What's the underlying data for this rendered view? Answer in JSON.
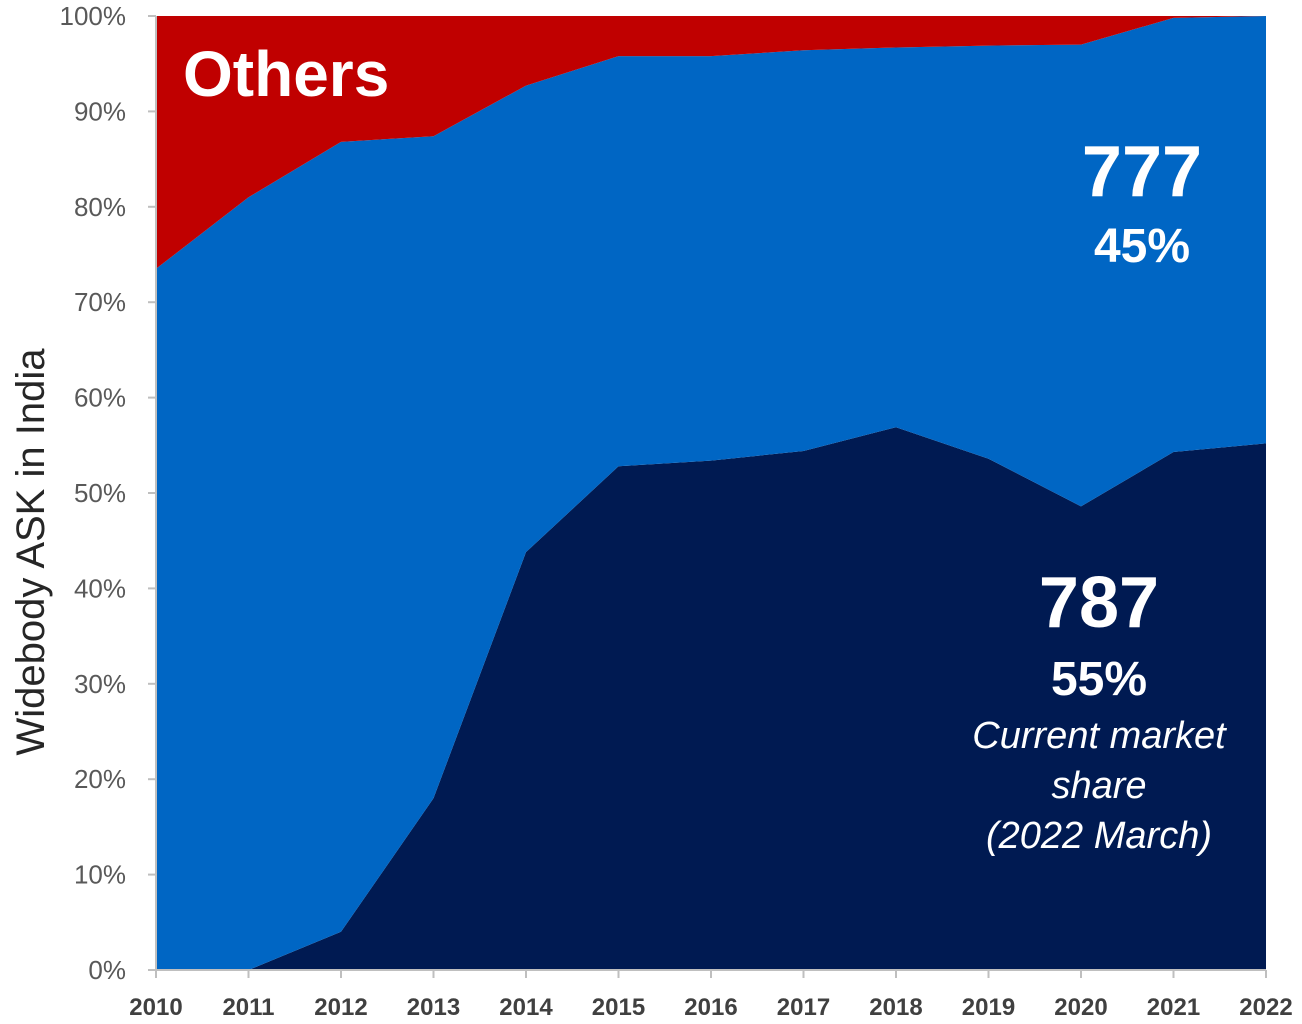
{
  "chart_data": {
    "type": "area",
    "stacked": true,
    "normalized": true,
    "x": [
      2010,
      2011,
      2012,
      2013,
      2014,
      2015,
      2016,
      2017,
      2018,
      2019,
      2020,
      2021,
      2022
    ],
    "series": [
      {
        "name": "787",
        "color": "#001a52",
        "values": [
          0.0,
          0.0,
          4.0,
          18.0,
          43.8,
          52.8,
          53.4,
          54.4,
          56.9,
          53.6,
          48.6,
          54.3,
          55.2
        ]
      },
      {
        "name": "777",
        "color": "#0066c4",
        "values": [
          73.5,
          81.0,
          82.8,
          69.4,
          48.9,
          43.0,
          42.4,
          42.0,
          39.8,
          43.3,
          48.4,
          45.5,
          44.8
        ]
      },
      {
        "name": "Others",
        "color": "#c00000",
        "values": [
          26.5,
          19.0,
          13.2,
          12.6,
          7.3,
          4.2,
          4.2,
          3.6,
          3.3,
          3.1,
          3.0,
          0.2,
          0.0
        ]
      }
    ],
    "ylabel": "Widebody ASK in India",
    "ylim": [
      0,
      100
    ],
    "y_ticks": [
      "0%",
      "10%",
      "20%",
      "30%",
      "40%",
      "50%",
      "60%",
      "70%",
      "80%",
      "90%",
      "100%"
    ],
    "x_ticks": [
      "2010",
      "2011",
      "2012",
      "2013",
      "2014",
      "2015",
      "2016",
      "2017",
      "2018",
      "2019",
      "2020",
      "2021",
      "2022"
    ],
    "grid": false,
    "annotations": {
      "others": "Others",
      "s777_name": "777",
      "s777_share": "45%",
      "s787_name": "787",
      "s787_share": "55%",
      "note_line1": "Current market",
      "note_line2": "share",
      "note_line3": "(2022 March)"
    }
  }
}
